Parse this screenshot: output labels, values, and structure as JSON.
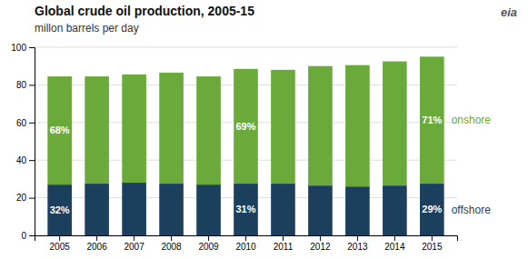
{
  "chart_data": {
    "type": "bar",
    "title": "Global crude oil production, 2005-15",
    "subtitle": "millon barrels per day",
    "stacked": true,
    "categories": [
      "2005",
      "2006",
      "2007",
      "2008",
      "2009",
      "2010",
      "2011",
      "2012",
      "2013",
      "2014",
      "2015"
    ],
    "series": [
      {
        "name": "offshore",
        "color": "#1b3f5c",
        "values": [
          27.0,
          27.5,
          28.0,
          27.5,
          27.0,
          27.5,
          27.5,
          26.5,
          26.0,
          26.5,
          27.5
        ]
      },
      {
        "name": "onshore",
        "color": "#6aaa3a",
        "values": [
          57.5,
          57.0,
          57.5,
          59.0,
          57.5,
          61.0,
          60.5,
          63.5,
          64.5,
          66.0,
          67.5
        ]
      }
    ],
    "ylim": [
      0,
      100
    ],
    "yticks": [
      0,
      20,
      40,
      60,
      80,
      100
    ],
    "grid": true,
    "annotations": [
      {
        "category": "2005",
        "series": "offshore",
        "text": "32%"
      },
      {
        "category": "2005",
        "series": "onshore",
        "text": "68%"
      },
      {
        "category": "2010",
        "series": "offshore",
        "text": "31%"
      },
      {
        "category": "2010",
        "series": "onshore",
        "text": "69%"
      },
      {
        "category": "2015",
        "series": "offshore",
        "text": "29%"
      },
      {
        "category": "2015",
        "series": "onshore",
        "text": "71%"
      },
      {
        "text": "eia"
      }
    ]
  }
}
